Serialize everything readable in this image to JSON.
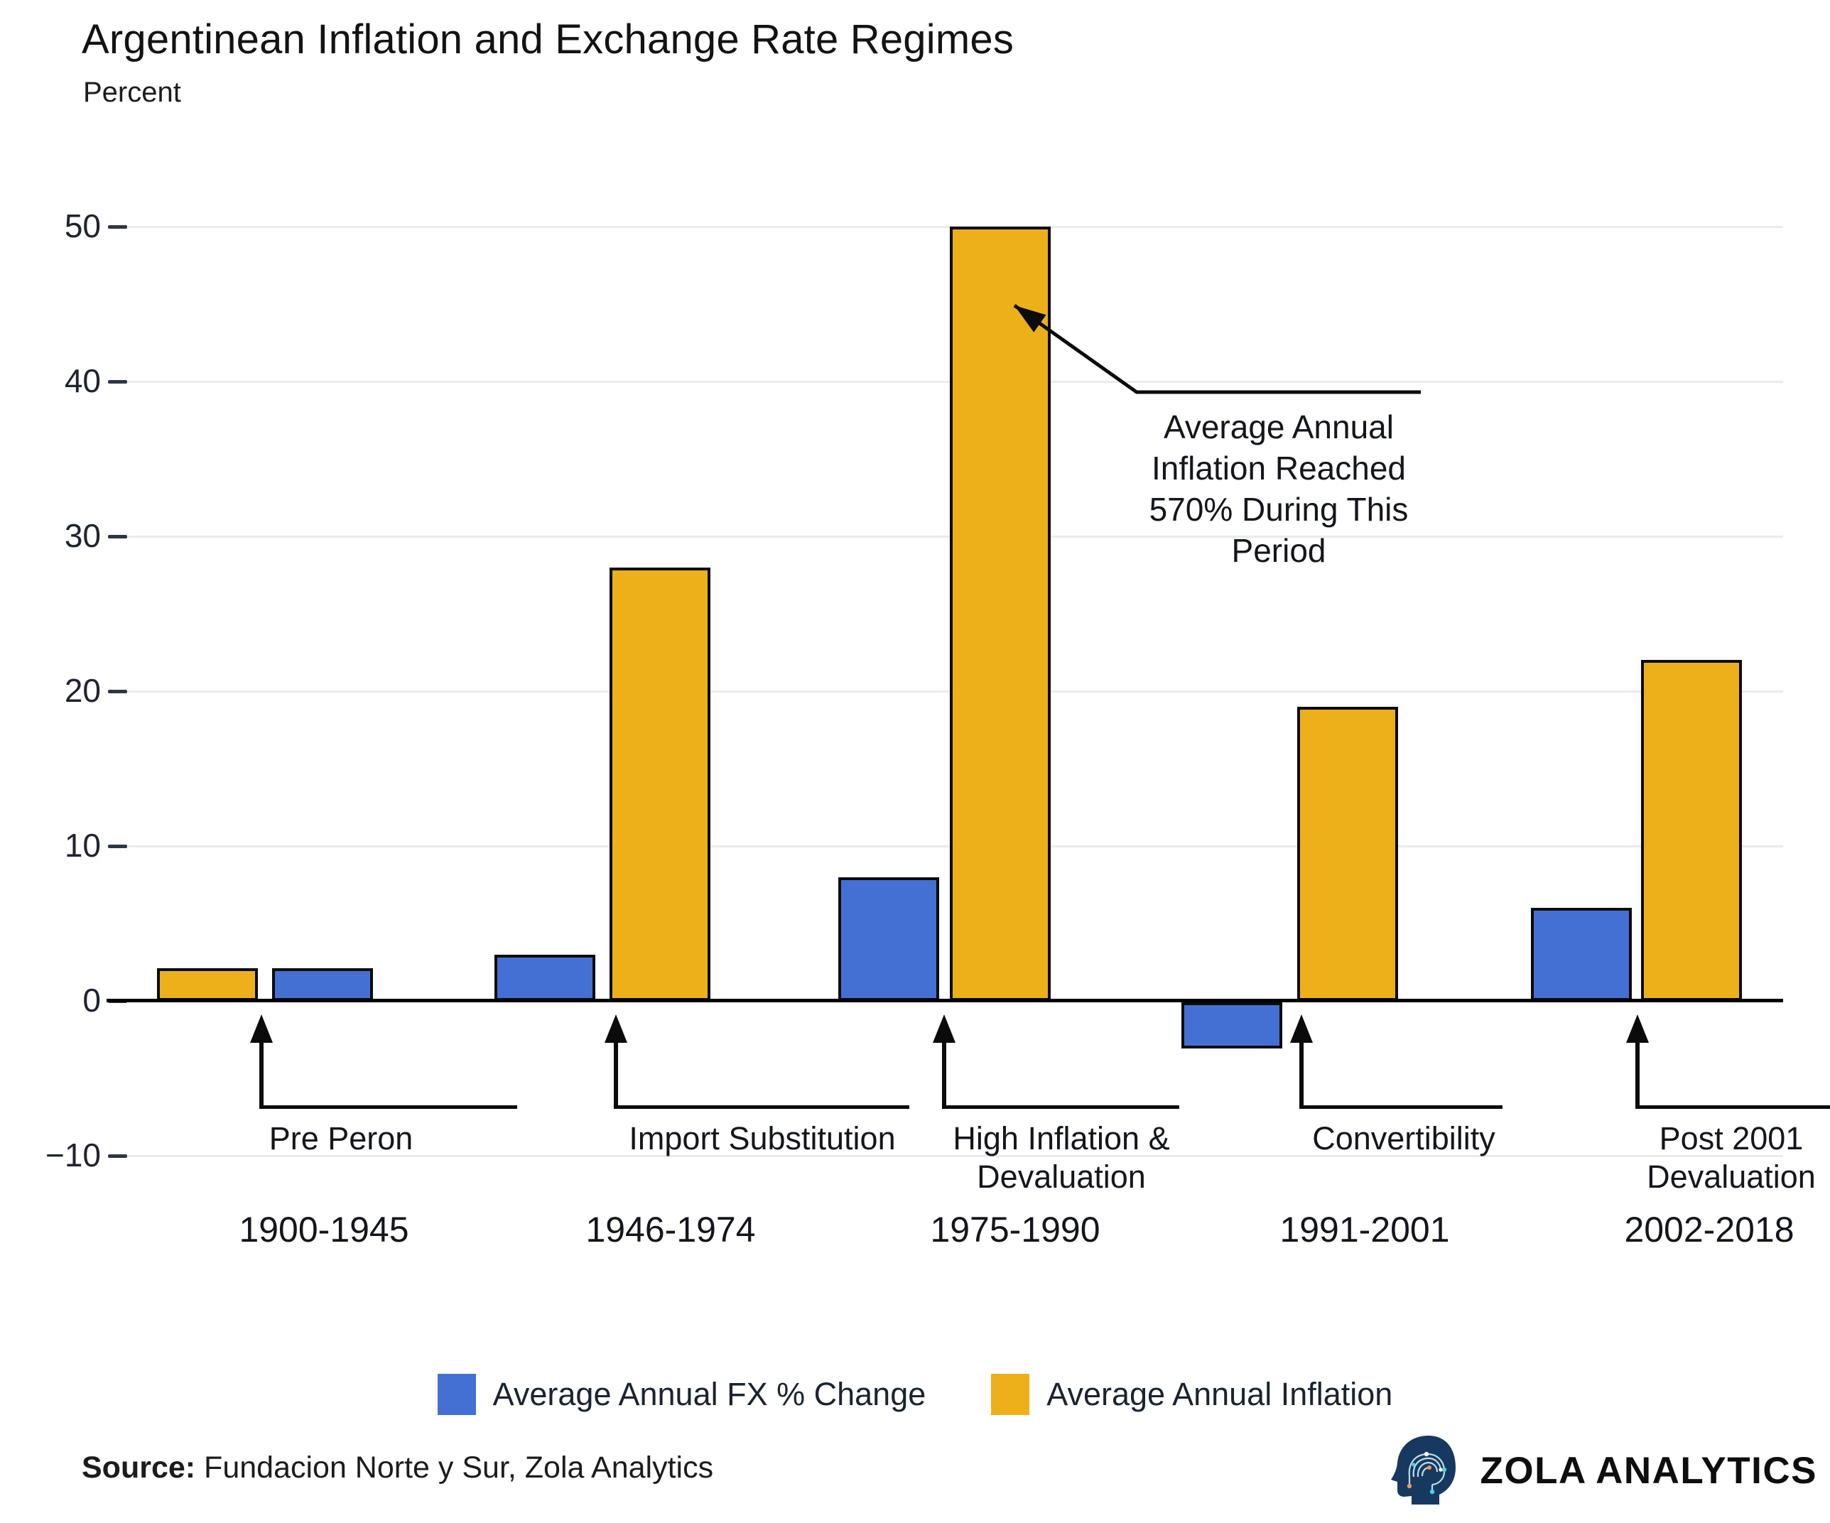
{
  "title": "Argentinean Inflation and Exchange Rate Regimes",
  "subtitle": "Percent",
  "source": {
    "label": "Source:",
    "text": " Fundacion Norte y Sur, Zola Analytics"
  },
  "brand": {
    "name": "ZOLA ANALYTICS",
    "icon": "circuit-head-icon"
  },
  "colors": {
    "fx_blue": "#4470D4",
    "inflation_gold": "#EDB01A",
    "bar_outline": "#0B0B0B",
    "gridline": "#E9EBEE",
    "axis": "#000000",
    "text_dark": "#14161C",
    "logo_navy": "#17395F"
  },
  "legend": [
    {
      "series": "fx",
      "label": "Average Annual FX % Change",
      "color": "#4470D4"
    },
    {
      "series": "inflation",
      "label": "Average Annual Inflation",
      "color": "#EDB01A"
    }
  ],
  "chart_data": {
    "type": "bar",
    "title": "Argentinean Inflation and Exchange Rate Regimes",
    "ylabel": "Percent",
    "xlabel": "",
    "ylim": [
      -10,
      50
    ],
    "yticks": [
      {
        "value": 50,
        "label": "50"
      },
      {
        "value": 40,
        "label": "40"
      },
      {
        "value": 30,
        "label": "30"
      },
      {
        "value": 20,
        "label": "20"
      },
      {
        "value": 10,
        "label": "10"
      },
      {
        "value": 0,
        "label": "0"
      },
      {
        "value": -10,
        "label": "−10"
      }
    ],
    "grid": "horizontal",
    "legend_position": "bottom",
    "categories": [
      "1900-1945",
      "1946-1974",
      "1975-1990",
      "1991-2001",
      "2002-2018"
    ],
    "series": [
      {
        "name": "Average Annual FX % Change",
        "key": "fx",
        "color": "#4470D4",
        "values": [
          2.1,
          3,
          8,
          -3,
          6
        ]
      },
      {
        "name": "Average Annual Inflation",
        "key": "inflation",
        "color": "#EDB01A",
        "values": [
          2.1,
          28,
          50,
          19,
          22
        ]
      }
    ],
    "groups": [
      {
        "category": "1900-1945",
        "bars": [
          {
            "series": "inflation",
            "value": 2.1
          },
          {
            "series": "fx",
            "value": 2.1
          }
        ]
      },
      {
        "category": "1946-1974",
        "bars": [
          {
            "series": "fx",
            "value": 3
          },
          {
            "series": "inflation",
            "value": 28
          }
        ]
      },
      {
        "category": "1975-1990",
        "bars": [
          {
            "series": "fx",
            "value": 8
          },
          {
            "series": "inflation",
            "value": 50
          }
        ]
      },
      {
        "category": "1991-2001",
        "bars": [
          {
            "series": "fx",
            "value": -3
          },
          {
            "series": "inflation",
            "value": 19
          }
        ]
      },
      {
        "category": "2002-2018",
        "bars": [
          {
            "series": "fx",
            "value": 6
          },
          {
            "series": "inflation",
            "value": 22
          }
        ]
      }
    ],
    "regime_annotations": [
      {
        "lines": [
          "Pre Peron"
        ]
      },
      {
        "lines": [
          "Import Substitution"
        ]
      },
      {
        "lines": [
          "High Inflation &",
          "Devaluation"
        ]
      },
      {
        "lines": [
          "Convertibility"
        ]
      },
      {
        "lines": [
          "Post 2001",
          "Devaluation"
        ]
      }
    ],
    "callout": {
      "lines": [
        "Average Annual",
        "Inflation Reached",
        "570% During This",
        "Period"
      ],
      "points_at": "1975-1990 inflation bar"
    }
  }
}
